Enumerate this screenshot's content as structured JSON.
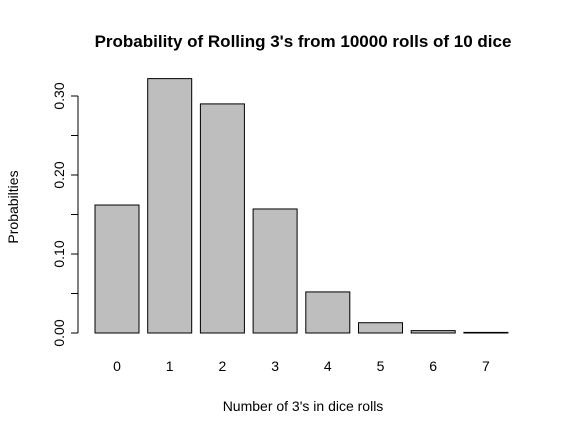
{
  "chart_data": {
    "type": "bar",
    "title": "Probability of Rolling 3's from 10000 rolls of 10 dice",
    "xlabel": "Number of 3's in dice rolls",
    "ylabel": "Probabilties",
    "categories": [
      "0",
      "1",
      "2",
      "3",
      "4",
      "5",
      "6",
      "7"
    ],
    "values": [
      0.162,
      0.322,
      0.29,
      0.157,
      0.052,
      0.013,
      0.003,
      0.0005
    ],
    "ylim": [
      0,
      0.32
    ],
    "yticks": [
      "0.00",
      "0.10",
      "0.20",
      "0.30"
    ],
    "ytick_values": [
      0,
      0.1,
      0.2,
      0.3
    ],
    "grid": false,
    "bar_color": "#bebebe"
  }
}
